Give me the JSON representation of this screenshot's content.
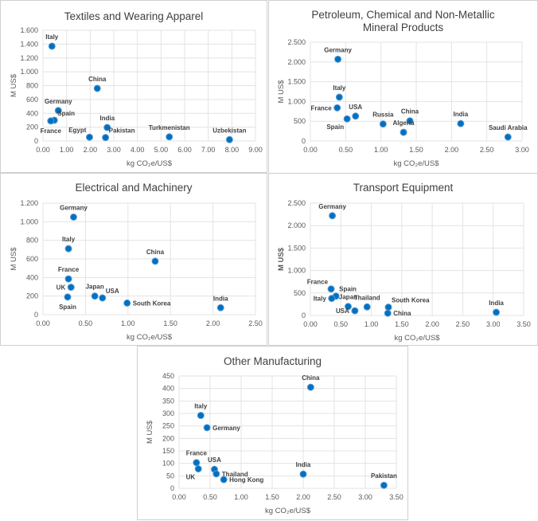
{
  "chart_data": [
    {
      "type": "scatter",
      "title": "Textiles and Wearing Apparel",
      "xlabel": "kg CO₂e/US$",
      "ylabel": "M US$",
      "xlim": [
        0,
        9
      ],
      "xstep": 1,
      "ylim": [
        0,
        1600
      ],
      "ystep": 200,
      "grid": true,
      "color": "#0070C0",
      "points": [
        {
          "label": "Italy",
          "x": 0.38,
          "y": 1370,
          "pos": "above"
        },
        {
          "label": "China",
          "x": 2.3,
          "y": 760,
          "pos": "above"
        },
        {
          "label": "Germany",
          "x": 0.65,
          "y": 440,
          "pos": "above"
        },
        {
          "label": "Spain",
          "x": 0.48,
          "y": 300,
          "pos": "above-right"
        },
        {
          "label": "France",
          "x": 0.33,
          "y": 290,
          "pos": "below"
        },
        {
          "label": "India",
          "x": 2.72,
          "y": 195,
          "pos": "above"
        },
        {
          "label": "Egypt",
          "x": 1.97,
          "y": 55,
          "pos": "above-left"
        },
        {
          "label": "Pakistan",
          "x": 2.65,
          "y": 50,
          "pos": "above-right"
        },
        {
          "label": "Turkmenistan",
          "x": 5.35,
          "y": 60,
          "pos": "above"
        },
        {
          "label": "Uzbekistan",
          "x": 7.9,
          "y": 20,
          "pos": "above"
        }
      ]
    },
    {
      "type": "scatter",
      "title": "Petroleum, Chemical and Non-Metallic Mineral Products",
      "xlabel": "kg CO₂e/US$",
      "ylabel": "M US$",
      "xlim": [
        0,
        3
      ],
      "xstep": 0.5,
      "ylim": [
        0,
        2500
      ],
      "ystep": 500,
      "grid": true,
      "color": "#0070C0",
      "points": [
        {
          "label": "Germany",
          "x": 0.39,
          "y": 2070,
          "pos": "above"
        },
        {
          "label": "Italy",
          "x": 0.41,
          "y": 1110,
          "pos": "above"
        },
        {
          "label": "France",
          "x": 0.38,
          "y": 840,
          "pos": "left"
        },
        {
          "label": "USA",
          "x": 0.64,
          "y": 630,
          "pos": "above"
        },
        {
          "label": "Spain",
          "x": 0.52,
          "y": 560,
          "pos": "below-left"
        },
        {
          "label": "Russia",
          "x": 1.03,
          "y": 430,
          "pos": "above"
        },
        {
          "label": "China",
          "x": 1.41,
          "y": 510,
          "pos": "above"
        },
        {
          "label": "Algeria",
          "x": 1.32,
          "y": 220,
          "pos": "above"
        },
        {
          "label": "India",
          "x": 2.13,
          "y": 440,
          "pos": "above"
        },
        {
          "label": "Saudi Arabia",
          "x": 2.8,
          "y": 100,
          "pos": "above"
        }
      ]
    },
    {
      "type": "scatter",
      "title": "Electrical and Machinery",
      "xlabel": "kg CO₂e/US$",
      "ylabel": "M US$",
      "xlim": [
        0,
        2.5
      ],
      "xstep": 0.5,
      "ylim": [
        0,
        1200
      ],
      "ystep": 200,
      "grid": true,
      "color": "#0070C0",
      "points": [
        {
          "label": "Germany",
          "x": 0.36,
          "y": 1050,
          "pos": "above"
        },
        {
          "label": "Italy",
          "x": 0.3,
          "y": 710,
          "pos": "above"
        },
        {
          "label": "China",
          "x": 1.32,
          "y": 575,
          "pos": "above"
        },
        {
          "label": "France",
          "x": 0.3,
          "y": 385,
          "pos": "above"
        },
        {
          "label": "UK",
          "x": 0.33,
          "y": 295,
          "pos": "left"
        },
        {
          "label": "Spain",
          "x": 0.29,
          "y": 190,
          "pos": "below"
        },
        {
          "label": "Japan",
          "x": 0.61,
          "y": 200,
          "pos": "above"
        },
        {
          "label": "USA",
          "x": 0.7,
          "y": 180,
          "pos": "above-right"
        },
        {
          "label": "South Korea",
          "x": 0.99,
          "y": 125,
          "pos": "right"
        },
        {
          "label": "India",
          "x": 2.09,
          "y": 75,
          "pos": "above"
        }
      ]
    },
    {
      "type": "scatter",
      "title": "Transport Equipment",
      "xlabel": "kg CO₂e/US$",
      "ylabel": "M US$",
      "xlim": [
        0,
        3.5
      ],
      "xstep": 0.5,
      "ylim": [
        0,
        2500
      ],
      "ystep": 500,
      "grid": true,
      "color": "#0070C0",
      "points": [
        {
          "label": "Germany",
          "x": 0.36,
          "y": 2220,
          "pos": "above"
        },
        {
          "label": "France",
          "x": 0.34,
          "y": 590,
          "pos": "above-left"
        },
        {
          "label": "Spain",
          "x": 0.42,
          "y": 430,
          "pos": "above-right"
        },
        {
          "label": "Italy",
          "x": 0.35,
          "y": 380,
          "pos": "left"
        },
        {
          "label": "Japan",
          "x": 0.62,
          "y": 200,
          "pos": "above"
        },
        {
          "label": "Thailand",
          "x": 0.93,
          "y": 190,
          "pos": "above"
        },
        {
          "label": "USA",
          "x": 0.73,
          "y": 105,
          "pos": "left"
        },
        {
          "label": "South Korea",
          "x": 1.28,
          "y": 185,
          "pos": "above-right"
        },
        {
          "label": "China",
          "x": 1.27,
          "y": 50,
          "pos": "right"
        },
        {
          "label": "India",
          "x": 3.05,
          "y": 70,
          "pos": "above"
        }
      ]
    },
    {
      "type": "scatter",
      "title": "Other Manufacturing",
      "xlabel": "kg CO₂e/US$",
      "ylabel": "M US$",
      "xlim": [
        0,
        3.5
      ],
      "xstep": 0.5,
      "ylim": [
        0,
        450
      ],
      "ystep": 50,
      "grid": true,
      "color": "#0070C0",
      "points": [
        {
          "label": "China",
          "x": 2.12,
          "y": 405,
          "pos": "above"
        },
        {
          "label": "Italy",
          "x": 0.35,
          "y": 292,
          "pos": "above"
        },
        {
          "label": "Germany",
          "x": 0.45,
          "y": 243,
          "pos": "right"
        },
        {
          "label": "France",
          "x": 0.28,
          "y": 103,
          "pos": "above"
        },
        {
          "label": "UK",
          "x": 0.31,
          "y": 78,
          "pos": "below-left"
        },
        {
          "label": "USA",
          "x": 0.57,
          "y": 76,
          "pos": "above"
        },
        {
          "label": "Thailand",
          "x": 0.6,
          "y": 58,
          "pos": "right"
        },
        {
          "label": "Hong Kong",
          "x": 0.72,
          "y": 35,
          "pos": "right"
        },
        {
          "label": "India",
          "x": 2.0,
          "y": 57,
          "pos": "above"
        },
        {
          "label": "Pakistan",
          "x": 3.3,
          "y": 12,
          "pos": "above"
        }
      ]
    }
  ]
}
